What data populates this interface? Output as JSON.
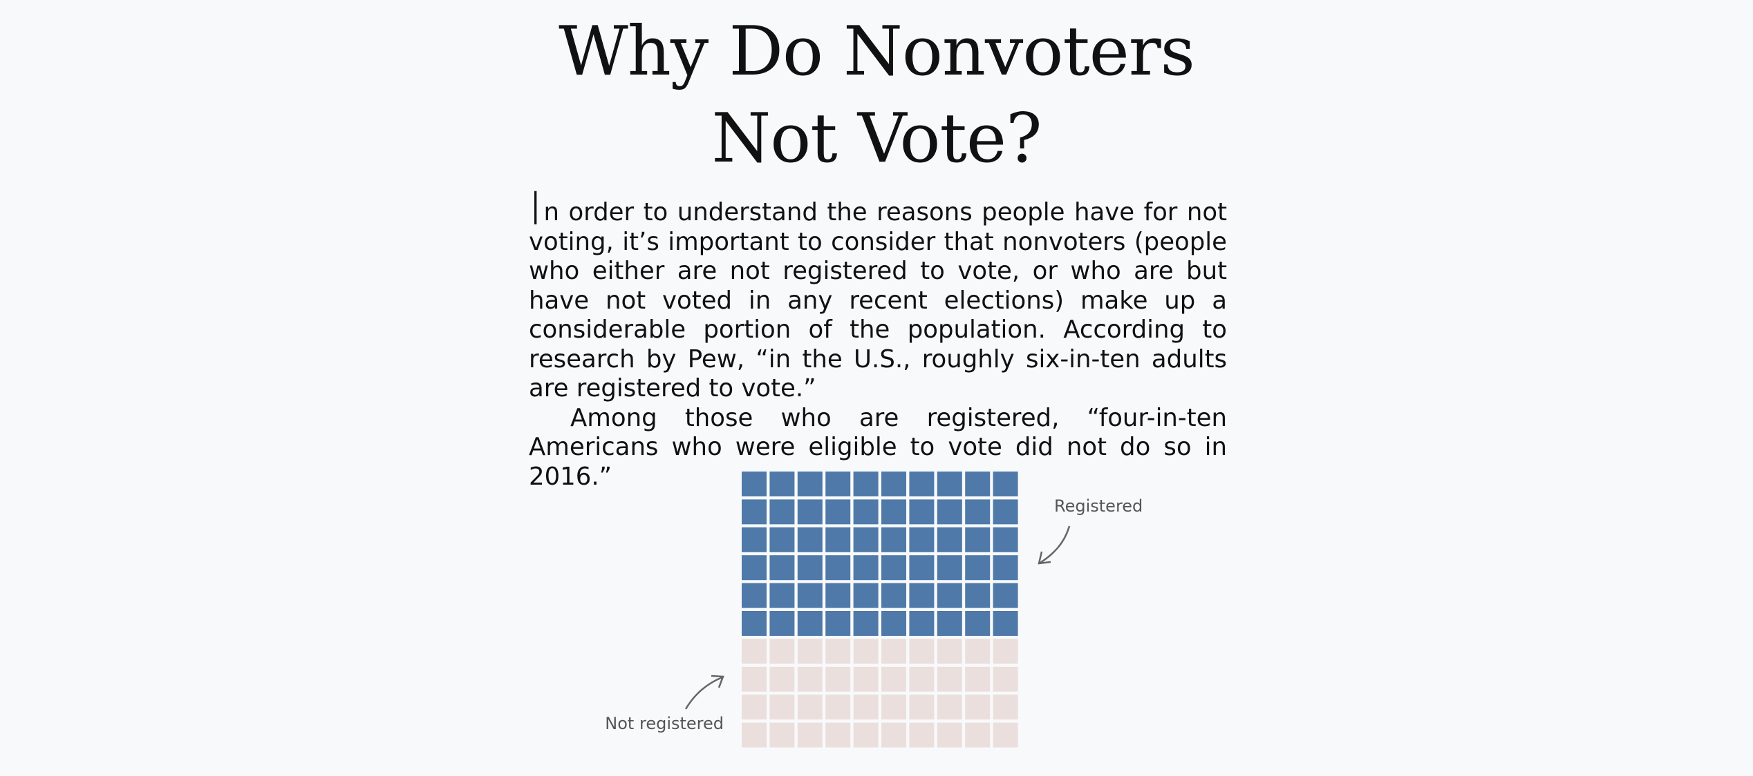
{
  "page": {
    "title_line1": "Why Do Nonvoters",
    "title_line2": "Not Vote?"
  },
  "article": {
    "paragraph1_dropcap": "I",
    "paragraph1_rest": "n order to understand the reasons people have for not voting, it’s important to consider that nonvoters (people who either are not registered to vote, or who are but have not voted in any recent elections) make up a considerable portion of the population. According to research by Pew, “in the U.S., roughly six-in-ten adults are registered to vote.”",
    "paragraph2": "Among those who are registered, “four-in-ten Americans who were eligible to vote did not do so in 2016.”"
  },
  "chart_data": {
    "type": "waffle",
    "total_cells": 100,
    "rows": 10,
    "columns": 10,
    "categories": [
      {
        "label": "Registered",
        "count": 60,
        "color": "#4f79a8"
      },
      {
        "label": "Not registered",
        "count": 40,
        "color": "#ebdfdd"
      }
    ]
  }
}
